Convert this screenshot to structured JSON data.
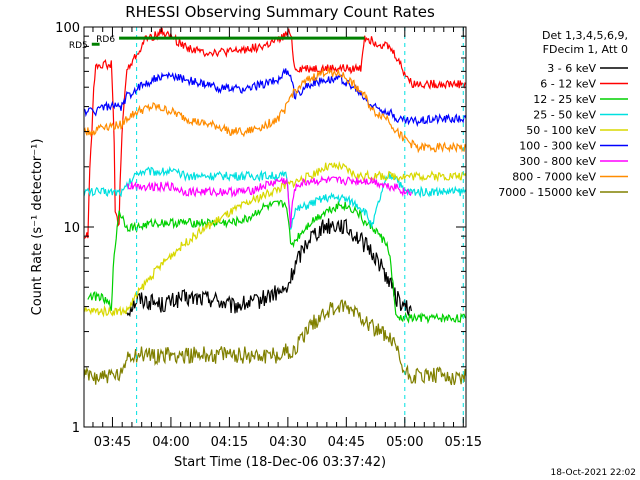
{
  "chart_data": {
    "type": "line",
    "title": "RHESSI Observing Summary Count Rates",
    "xlabel": "Start Time (18-Dec-06 03:37:42)",
    "ylabel": "Count Rate (s⁻¹ detector⁻¹)",
    "y_scale": "log",
    "ylim": [
      1,
      100
    ],
    "x_unit": "minutes after 03:37:42",
    "xlim": [
      0,
      98
    ],
    "x_ticks": [
      {
        "label": "03:45",
        "x": 7.3
      },
      {
        "label": "04:00",
        "x": 22.3
      },
      {
        "label": "04:15",
        "x": 37.3
      },
      {
        "label": "04:30",
        "x": 52.3
      },
      {
        "label": "04:45",
        "x": 67.3
      },
      {
        "label": "05:00",
        "x": 82.3
      },
      {
        "label": "05:15",
        "x": 97.3
      }
    ],
    "y_ticks": [
      {
        "label": "1",
        "v": 1
      },
      {
        "label": "10",
        "v": 10
      },
      {
        "label": "100",
        "v": 100
      }
    ],
    "legend_header": [
      "Det 1,3,4,5,6,9,",
      "FDecim 1, Att 0"
    ],
    "legend_position": "right",
    "annotations": [
      {
        "label": "RD6",
        "x_from": 9,
        "x_to": 72,
        "v": 88
      },
      {
        "label": "RD5",
        "x_from": 2,
        "x_to": 4,
        "v": 82
      }
    ],
    "dashed_vlines": [
      13.5,
      82.3,
      97.3
    ],
    "footer_timestamp": "18-Oct-2021 22:02",
    "series": [
      {
        "name": "3 - 6 keV",
        "color": "#000000",
        "x": [
          11,
          14,
          20,
          25,
          33,
          38,
          40,
          44,
          48,
          52,
          55,
          58,
          62,
          66,
          70,
          75,
          78,
          80,
          82,
          84
        ],
        "values": [
          3.8,
          4.4,
          4.1,
          4.4,
          4.4,
          4.0,
          4.1,
          4.2,
          4.6,
          4.8,
          7.0,
          9.0,
          10.2,
          10.3,
          9.0,
          7.0,
          5.5,
          4.5,
          4.0,
          3.8
        ]
      },
      {
        "name": "6 - 12 keV",
        "color": "#ff0000",
        "x": [
          0,
          1,
          2,
          3,
          4,
          7,
          8,
          9,
          11,
          14,
          16,
          18,
          20,
          24,
          26,
          30,
          34,
          38,
          42,
          46,
          50,
          52,
          53,
          54,
          58,
          62,
          66,
          70,
          71,
          72,
          74,
          78,
          80,
          82,
          84,
          86,
          90,
          94,
          98
        ],
        "values": [
          9,
          9,
          30,
          65,
          65,
          65,
          12,
          10,
          60,
          75,
          88,
          90,
          95,
          85,
          80,
          75,
          75,
          75,
          78,
          80,
          86,
          92,
          95,
          62,
          62,
          62,
          62,
          62,
          62,
          90,
          85,
          80,
          72,
          60,
          52,
          52,
          52,
          52,
          52
        ]
      },
      {
        "name": "12 - 25 keV",
        "color": "#00d000",
        "x": [
          1,
          4,
          7,
          9,
          11,
          14,
          18,
          22,
          26,
          30,
          34,
          38,
          42,
          46,
          50,
          52,
          53,
          54,
          58,
          62,
          66,
          70,
          72,
          74,
          78,
          80,
          82,
          84,
          98
        ],
        "values": [
          4.5,
          4.5,
          4.0,
          12,
          10,
          10,
          10.5,
          10.5,
          10.5,
          10.5,
          10.5,
          10.5,
          11,
          12.5,
          13,
          13,
          8,
          8.5,
          10.5,
          12,
          13,
          12,
          10.5,
          10,
          8,
          3.5,
          3.5,
          3.5,
          3.5
        ]
      },
      {
        "name": "25 - 50 keV",
        "color": "#00e0e0",
        "x": [
          0,
          4,
          8,
          10,
          11,
          14,
          18,
          22,
          26,
          30,
          34,
          38,
          42,
          46,
          50,
          52,
          53,
          54,
          58,
          62,
          66,
          70,
          72,
          74,
          78,
          80,
          82,
          84,
          98
        ],
        "values": [
          15,
          15,
          15,
          15,
          16,
          19,
          19,
          19,
          18,
          18,
          18,
          18,
          18,
          18,
          18,
          18,
          10,
          12,
          13,
          14,
          14,
          13,
          12,
          10,
          18,
          18,
          15,
          15,
          15
        ]
      },
      {
        "name": "50 - 100 keV",
        "color": "#d8d800",
        "x": [
          0,
          2,
          2.5,
          10,
          11,
          58,
          62,
          66,
          70,
          98
        ],
        "values": [
          3.8,
          3.8,
          3.8,
          3.8,
          3.8,
          18,
          20,
          20,
          18,
          18
        ]
      },
      {
        "name": "100 - 300 keV",
        "color": "#0000ff",
        "x": [
          0,
          3,
          4,
          8,
          10,
          11,
          14,
          18,
          22,
          26,
          30,
          34,
          38,
          42,
          46,
          50,
          52,
          53,
          54,
          58,
          62,
          66,
          70,
          72,
          74,
          78,
          80,
          82,
          84,
          86,
          90,
          94,
          98
        ],
        "values": [
          38,
          38,
          40,
          40,
          40,
          45,
          50,
          55,
          57,
          55,
          52,
          50,
          49,
          49,
          52,
          55,
          60,
          58,
          45,
          52,
          55,
          55,
          48,
          44,
          40,
          38,
          35,
          34,
          34,
          34,
          35,
          35,
          35
        ]
      },
      {
        "name": "300 - 800 keV",
        "color": "#ff00ff",
        "x": [
          11,
          14,
          18,
          22,
          26,
          30,
          34,
          38,
          42,
          46,
          50,
          52,
          53,
          54,
          58,
          62,
          66,
          70,
          72,
          74,
          78,
          80,
          82,
          84
        ],
        "values": [
          16,
          16,
          16,
          16,
          15,
          15,
          15,
          15,
          15,
          16,
          17,
          17,
          10,
          16,
          17,
          17,
          17,
          17,
          17,
          17,
          16,
          16,
          15,
          15
        ]
      },
      {
        "name": "800 - 7000 keV",
        "color": "#ff8c00",
        "x": [
          0,
          3,
          4,
          8,
          10,
          11,
          14,
          18,
          22,
          26,
          30,
          34,
          38,
          42,
          46,
          50,
          52,
          53,
          54,
          58,
          62,
          66,
          70,
          72,
          74,
          78,
          80,
          82,
          84,
          86,
          90,
          94,
          98
        ],
        "values": [
          30,
          30,
          32,
          32,
          33,
          35,
          38,
          40,
          38,
          35,
          33,
          32,
          30,
          30,
          32,
          35,
          40,
          45,
          48,
          55,
          60,
          58,
          50,
          45,
          38,
          35,
          30,
          28,
          26,
          25,
          25,
          25,
          25
        ]
      },
      {
        "name": "7000 - 15000 keV",
        "color": "#808000",
        "x": [
          0,
          10,
          11,
          14,
          18,
          22,
          26,
          30,
          34,
          38,
          42,
          46,
          50,
          52,
          54,
          58,
          62,
          66,
          70,
          74,
          78,
          80,
          82,
          84,
          88,
          92,
          98
        ],
        "values": [
          1.8,
          1.8,
          2.3,
          2.3,
          2.3,
          2.3,
          2.3,
          2.3,
          2.3,
          2.3,
          2.3,
          2.3,
          2.3,
          2.4,
          2.4,
          3.2,
          3.8,
          4.0,
          3.8,
          3.2,
          2.8,
          2.5,
          1.9,
          1.8,
          1.8,
          1.8,
          1.8
        ]
      }
    ]
  }
}
